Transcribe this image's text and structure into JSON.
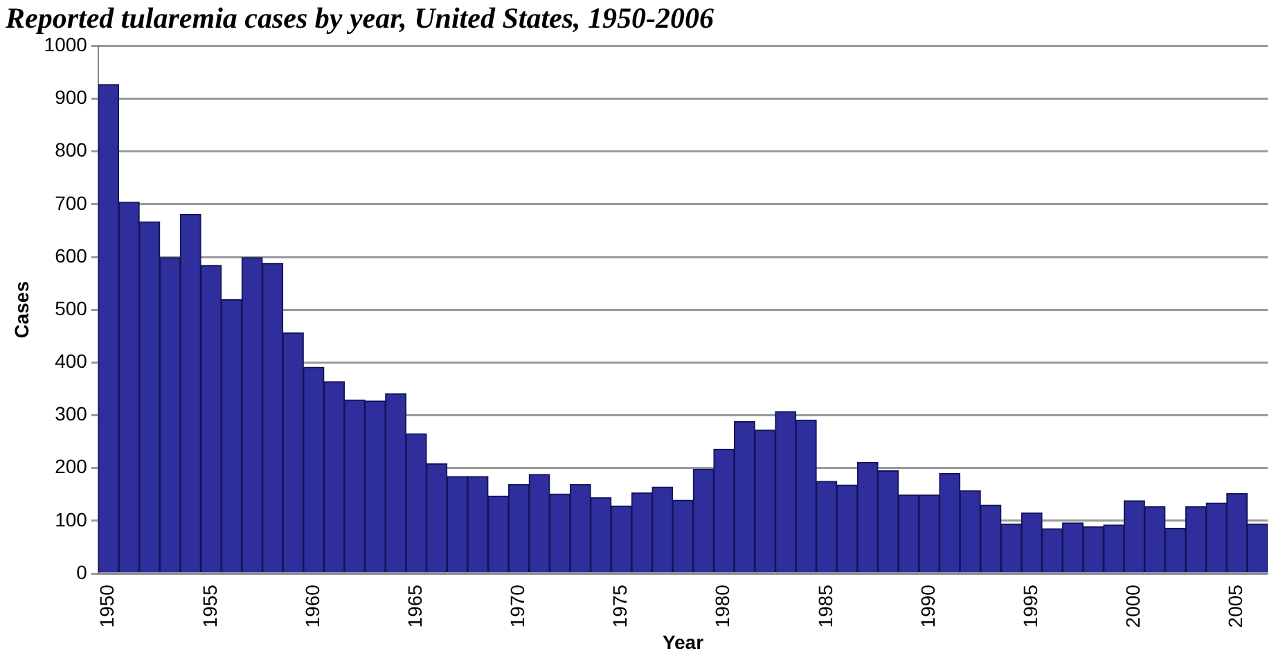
{
  "chart_data": {
    "type": "bar",
    "title": "Reported tularemia cases by year, United States, 1950-2006",
    "xlabel": "Year",
    "ylabel": "Cases",
    "categories": [
      "1950",
      null,
      null,
      null,
      null,
      "1955",
      null,
      null,
      null,
      null,
      "1960",
      null,
      null,
      null,
      null,
      "1965",
      null,
      null,
      null,
      null,
      "1970",
      null,
      null,
      null,
      null,
      "1975",
      null,
      null,
      null,
      null,
      "1980",
      null,
      null,
      null,
      null,
      "1985",
      null,
      null,
      null,
      null,
      "1990",
      null,
      null,
      null,
      null,
      "1995",
      null,
      null,
      null,
      null,
      "2000",
      null,
      null,
      null,
      null,
      "2005",
      null
    ],
    "values": [
      927,
      704,
      667,
      599,
      681,
      584,
      519,
      599,
      588,
      456,
      391,
      364,
      329,
      327,
      341,
      265,
      208,
      184,
      184,
      147,
      169,
      188,
      151,
      169,
      144,
      128,
      153,
      164,
      139,
      198,
      236,
      288,
      272,
      307,
      291,
      175,
      168,
      211,
      195,
      149,
      149,
      190,
      157,
      130,
      94,
      115,
      85,
      96,
      89,
      92,
      138,
      127,
      86,
      127,
      134,
      152,
      94
    ],
    "color": "#2e2e9c",
    "ylim": [
      0,
      1000
    ],
    "yticks": [
      0,
      100,
      200,
      300,
      400,
      500,
      600,
      700,
      800,
      900,
      1000
    ],
    "grid": "y",
    "legend": false
  }
}
